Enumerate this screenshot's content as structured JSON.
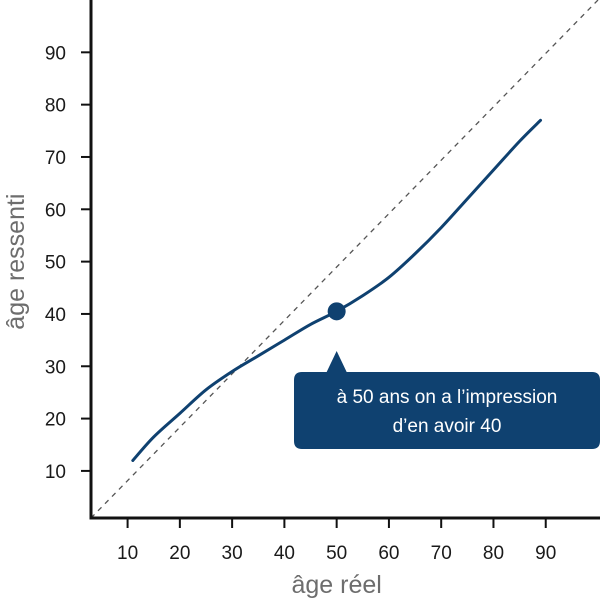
{
  "chart_data": {
    "type": "line",
    "xlabel": "âge réel",
    "ylabel": "âge ressenti",
    "xlim": [
      3,
      100
    ],
    "ylim": [
      1,
      100
    ],
    "x_ticks": [
      10,
      20,
      30,
      40,
      50,
      60,
      70,
      80,
      90
    ],
    "y_ticks": [
      10,
      20,
      30,
      40,
      50,
      60,
      70,
      80,
      90
    ],
    "reference_line": {
      "style": "dashed",
      "x": [
        3,
        100
      ],
      "y": [
        1,
        100
      ]
    },
    "series": [
      {
        "color": "#0f4170",
        "x": [
          11,
          15,
          20,
          25,
          30,
          35,
          40,
          45,
          50,
          55,
          60,
          65,
          70,
          75,
          80,
          85,
          89
        ],
        "y": [
          12,
          16.5,
          21,
          25.5,
          29,
          32,
          35,
          38,
          40.5,
          43.5,
          47,
          51.5,
          56.5,
          62,
          67.5,
          73,
          77
        ]
      }
    ],
    "highlight": {
      "x": 50,
      "y": 40.5
    },
    "annotation": {
      "lines": [
        "à 50 ans on a l’impression",
        "d’en avoir 40"
      ],
      "background": "#0f4170",
      "text_color": "#ffffff"
    }
  }
}
